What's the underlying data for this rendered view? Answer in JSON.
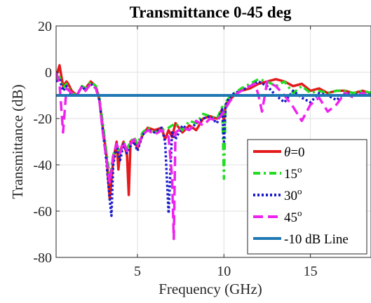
{
  "chart_data": {
    "type": "line",
    "title": "Transmittance 0-45 deg",
    "xlabel": "Frequency (GHz)",
    "ylabel": "Transmittance (dB)",
    "xlim": [
      0.3,
      18.5
    ],
    "ylim": [
      -80,
      20
    ],
    "xticks": [
      5,
      10,
      15
    ],
    "yticks": [
      20,
      0,
      -20,
      -40,
      -60,
      -80
    ],
    "xtick_labels": [
      "5",
      "10",
      "15"
    ],
    "ytick_labels": [
      "20",
      "0",
      "-20",
      "-40",
      "-60",
      "-80"
    ],
    "grid": true,
    "legend_position": "bottom-right",
    "series": [
      {
        "name": "θ=0",
        "legend_main": "θ",
        "legend_rest": "=0",
        "color": "#e41a1c",
        "dash": "solid",
        "x": [
          0.3,
          0.5,
          0.7,
          0.9,
          1.0,
          1.2,
          1.5,
          1.8,
          2.0,
          2.3,
          2.6,
          2.8,
          3.0,
          3.2,
          3.4,
          3.6,
          3.8,
          3.9,
          4.0,
          4.2,
          4.4,
          4.5,
          4.6,
          4.8,
          5.0,
          5.3,
          5.6,
          6.0,
          6.4,
          6.6,
          6.8,
          7.0,
          7.2,
          7.6,
          8.0,
          8.4,
          8.8,
          9.2,
          9.6,
          9.9,
          10.0,
          10.1,
          10.3,
          10.6,
          11.0,
          11.5,
          12.0,
          12.5,
          13.0,
          13.5,
          14.0,
          14.5,
          15.0,
          15.5,
          16.0,
          16.5,
          17.0,
          17.5,
          18.0,
          18.5
        ],
        "y": [
          -2,
          3,
          -6,
          -4,
          -5,
          -8,
          -10,
          -6,
          -7,
          -4,
          -6,
          -12,
          -24,
          -35,
          -55,
          -38,
          -30,
          -42,
          -34,
          -30,
          -36,
          -53,
          -30,
          -29,
          -33,
          -27,
          -24,
          -25,
          -24,
          -29,
          -25,
          -28,
          -22,
          -26,
          -23,
          -25,
          -20,
          -19,
          -20,
          -16,
          -21,
          -14,
          -12,
          -10,
          -8,
          -7,
          -5,
          -4,
          -3,
          -4,
          -6,
          -5,
          -8,
          -7,
          -9,
          -8,
          -8,
          -9,
          -8,
          -9
        ]
      },
      {
        "name": "15°",
        "legend_main": "15",
        "legend_rest": "o",
        "color": "#22dd22",
        "dash": "10,5,3,5",
        "x": [
          0.3,
          0.5,
          0.7,
          0.9,
          1.2,
          1.5,
          1.8,
          2.0,
          2.3,
          2.6,
          2.8,
          3.0,
          3.2,
          3.4,
          3.6,
          3.8,
          4.0,
          4.2,
          4.4,
          4.6,
          4.8,
          5.0,
          5.3,
          5.6,
          6.0,
          6.4,
          6.8,
          7.2,
          7.6,
          8.0,
          8.4,
          8.8,
          9.2,
          9.6,
          9.9,
          10.0,
          10.1,
          10.3,
          10.6,
          11.0,
          11.5,
          12.0,
          12.5,
          13.0,
          13.5,
          14.0,
          14.5,
          15.0,
          15.5,
          16.0,
          16.5,
          17.0,
          17.5,
          18.0,
          18.5
        ],
        "y": [
          -3,
          -2,
          -7,
          -5,
          -9,
          -10,
          -6,
          -7,
          -4,
          -6,
          -11,
          -22,
          -34,
          -45,
          -36,
          -31,
          -36,
          -30,
          -33,
          -30,
          -28,
          -31,
          -26,
          -24,
          -26,
          -25,
          -24,
          -22,
          -25,
          -21,
          -22,
          -18,
          -19,
          -20,
          -15,
          -46,
          -13,
          -11,
          -9,
          -7,
          -5,
          -3,
          -4,
          -6,
          -4,
          -9,
          -6,
          -9,
          -8,
          -9,
          -8,
          -8,
          -9,
          -8,
          -9
        ]
      },
      {
        "name": "30°",
        "legend_main": "30",
        "legend_rest": "o",
        "color": "#1a1acc",
        "dash": "3,3",
        "x": [
          0.3,
          0.5,
          0.7,
          0.9,
          1.2,
          1.5,
          1.8,
          2.0,
          2.3,
          2.6,
          2.8,
          3.0,
          3.2,
          3.4,
          3.5,
          3.6,
          3.8,
          4.0,
          4.2,
          4.4,
          4.6,
          4.8,
          5.0,
          5.3,
          5.6,
          6.0,
          6.4,
          6.6,
          6.8,
          7.0,
          7.2,
          7.6,
          8.0,
          8.4,
          8.8,
          9.2,
          9.6,
          9.9,
          10.0,
          10.1,
          10.3,
          10.6,
          11.0,
          11.5,
          12.0,
          12.5,
          13.0,
          13.5,
          14.0,
          14.5,
          15.0,
          15.5,
          16.0,
          16.5,
          17.0,
          17.5,
          18.0,
          18.5
        ],
        "y": [
          -4,
          -3,
          -8,
          -6,
          -10,
          -10,
          -6,
          -8,
          -5,
          -7,
          -12,
          -25,
          -38,
          -55,
          -62,
          -40,
          -32,
          -38,
          -31,
          -35,
          -32,
          -30,
          -34,
          -27,
          -25,
          -26,
          -24,
          -30,
          -61,
          -26,
          -29,
          -23,
          -25,
          -22,
          -20,
          -19,
          -22,
          -16,
          -30,
          -14,
          -11,
          -9,
          -8,
          -6,
          -4,
          -6,
          -10,
          -13,
          -8,
          -11,
          -13,
          -9,
          -10,
          -12,
          -9,
          -10,
          -9,
          -10
        ]
      },
      {
        "name": "45°",
        "legend_main": "45",
        "legend_rest": "o",
        "color": "#ee22ee",
        "dash": "14,7",
        "x": [
          0.3,
          0.5,
          0.7,
          0.9,
          1.2,
          1.5,
          1.8,
          2.0,
          2.3,
          2.6,
          2.8,
          3.0,
          3.2,
          3.4,
          3.6,
          3.8,
          4.0,
          4.2,
          4.4,
          4.6,
          4.8,
          5.0,
          5.3,
          5.6,
          6.0,
          6.4,
          6.8,
          7.0,
          7.1,
          7.2,
          7.6,
          8.0,
          8.4,
          8.8,
          9.2,
          9.6,
          10.0,
          10.3,
          10.6,
          11.0,
          11.5,
          11.8,
          12.0,
          12.2,
          12.5,
          13.0,
          13.5,
          14.0,
          14.5,
          15.0,
          15.5,
          16.0,
          16.5,
          17.0,
          17.5,
          18.0,
          18.5
        ],
        "y": [
          0,
          -5,
          -26,
          -7,
          -9,
          -10,
          -6,
          -8,
          -5,
          -7,
          -12,
          -26,
          -37,
          -48,
          -36,
          -31,
          -35,
          -30,
          -34,
          -31,
          -29,
          -32,
          -27,
          -25,
          -27,
          -25,
          -28,
          -45,
          -72,
          -26,
          -24,
          -25,
          -21,
          -23,
          -20,
          -21,
          -17,
          -13,
          -10,
          -8,
          -6,
          -5,
          -10,
          -17,
          -4,
          -6,
          -10,
          -15,
          -21,
          -14,
          -11,
          -17,
          -14,
          -9,
          -11,
          -9,
          -10
        ]
      },
      {
        "name": "-10 dB Line",
        "legend_main": "-10 dB Line",
        "legend_rest": "",
        "color": "#1f77b4",
        "dash": "solid",
        "x": [
          0.3,
          18.5
        ],
        "y": [
          -10,
          -10
        ]
      }
    ]
  }
}
